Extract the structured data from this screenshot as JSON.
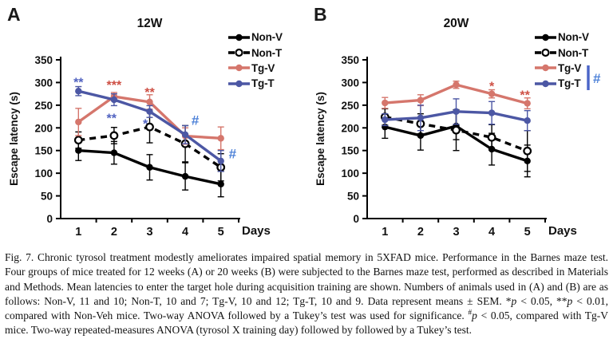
{
  "colors": {
    "black": "#000000",
    "salmon": "#d5766c",
    "dark_blue": "#4c57a4",
    "star_red": "#ce4f44",
    "star_blue": "#5062c0",
    "hash_blue": "#4e82d8",
    "bracket_blue": "#4a64c8"
  },
  "chart_data": [
    {
      "type": "line",
      "panel_letter": "A",
      "title": "12W",
      "xlabel": "Days",
      "ylabel": "Escape latency (s)",
      "x": [
        "1",
        "2",
        "3",
        "4",
        "5"
      ],
      "ylim": [
        0,
        350
      ],
      "yticks": [
        0,
        50,
        100,
        150,
        200,
        250,
        300,
        350
      ],
      "legend_position": "top-right",
      "grid": false,
      "series": [
        {
          "name": "Non-V",
          "color": "#000000",
          "marker": "filled",
          "dash": "solid",
          "values": [
            150,
            145,
            113,
            93,
            76
          ],
          "sem": [
            22,
            25,
            28,
            30,
            28
          ]
        },
        {
          "name": "Non-T",
          "color": "#000000",
          "marker": "open",
          "dash": "dashed",
          "values": [
            173,
            183,
            202,
            165,
            113
          ],
          "sem": [
            18,
            18,
            35,
            40,
            30
          ]
        },
        {
          "name": "Tg-V",
          "color": "#d5766c",
          "marker": "filled",
          "dash": "solid",
          "values": [
            213,
            269,
            257,
            182,
            177
          ],
          "sem": [
            30,
            9,
            16,
            18,
            25
          ]
        },
        {
          "name": "Tg-T",
          "color": "#4c57a4",
          "marker": "filled",
          "dash": "solid",
          "values": [
            281,
            262,
            236,
            185,
            127
          ],
          "sem": [
            10,
            13,
            13,
            20,
            23
          ]
        }
      ],
      "annotations": [
        {
          "text": "**",
          "day": 1,
          "value": 305,
          "color": "#5062c0"
        },
        {
          "text": "***",
          "day": 2,
          "value": 299,
          "color": "#ce4f44"
        },
        {
          "text": "**",
          "day": 1.93,
          "value": 226,
          "color": "#5062c0"
        },
        {
          "text": "**",
          "day": 3,
          "value": 283,
          "color": "#ce4f44"
        },
        {
          "text": "*",
          "day": 2.88,
          "value": 214,
          "color": "#5062c0"
        },
        {
          "text": "#",
          "day": 4.28,
          "value": 217,
          "color": "#4e82d8"
        },
        {
          "text": "#",
          "day": 5.33,
          "value": 143,
          "color": "#4e82d8"
        }
      ],
      "legend_bracket": null
    },
    {
      "type": "line",
      "panel_letter": "B",
      "title": "20W",
      "xlabel": "Days",
      "ylabel": "Escape latency (s)",
      "x": [
        "1",
        "2",
        "3",
        "4",
        "5"
      ],
      "ylim": [
        0,
        350
      ],
      "yticks": [
        0,
        50,
        100,
        150,
        200,
        250,
        300,
        350
      ],
      "legend_position": "top-right",
      "grid": false,
      "series": [
        {
          "name": "Non-V",
          "color": "#000000",
          "marker": "filled",
          "dash": "solid",
          "values": [
            202,
            183,
            204,
            153,
            127
          ],
          "sem": [
            25,
            32,
            30,
            35,
            35
          ]
        },
        {
          "name": "Non-T",
          "color": "#000000",
          "marker": "open",
          "dash": "dashed",
          "values": [
            224,
            209,
            195,
            179,
            149
          ],
          "sem": [
            18,
            22,
            45,
            28,
            45
          ]
        },
        {
          "name": "Tg-V",
          "color": "#d5766c",
          "marker": "filled",
          "dash": "solid",
          "values": [
            255,
            261,
            295,
            275,
            254
          ],
          "sem": [
            12,
            12,
            8,
            9,
            12
          ]
        },
        {
          "name": "Tg-T",
          "color": "#4c57a4",
          "marker": "filled",
          "dash": "solid",
          "values": [
            218,
            222,
            236,
            233,
            216
          ],
          "sem": [
            13,
            28,
            28,
            25,
            22
          ]
        }
      ],
      "annotations": [
        {
          "text": "*",
          "day": 4,
          "value": 296,
          "color": "#ce4f44"
        },
        {
          "text": "**",
          "day": 4.93,
          "value": 277,
          "color": "#ce4f44"
        }
      ],
      "legend_bracket": {
        "text": "#",
        "text_color": "#4e82d8",
        "bar_color": "#4a64c8"
      }
    }
  ],
  "caption": {
    "segments": [
      {
        "style": "normal",
        "text": "Fig. 7. Chronic tyrosol treatment modestly ameliorates impaired spatial memory in 5XFAD mice. Performance in the Barnes maze test. Four groups of mice treated for 12 weeks (A) or 20 weeks (B) were subjected to the Barnes maze test, performed as described in Materials and Methods. Mean latencies to enter the target hole during acquisition training are shown. Numbers of animals used in (A) and (B) are as follows: Non-V, 11 and 10; Non-T, 10 and 7; Tg-V, 10 and 12; Tg-T, 10 and 9. Data represent means ± SEM. *"
      },
      {
        "style": "italic",
        "text": "p"
      },
      {
        "style": "normal",
        "text": " < 0.05, **"
      },
      {
        "style": "italic",
        "text": "p"
      },
      {
        "style": "normal",
        "text": " < 0.01, compared with Non-Veh mice. Two-way ANOVA followed by a Tukey’s test was used for significance. "
      },
      {
        "style": "sup",
        "text": "#"
      },
      {
        "style": "italic",
        "text": "p"
      },
      {
        "style": "normal",
        "text": " < 0.05, compared with Tg-V mice. Two-way repeated-measures ANOVA (tyrosol X training day) followed by followed by a Tukey’s test."
      }
    ]
  }
}
